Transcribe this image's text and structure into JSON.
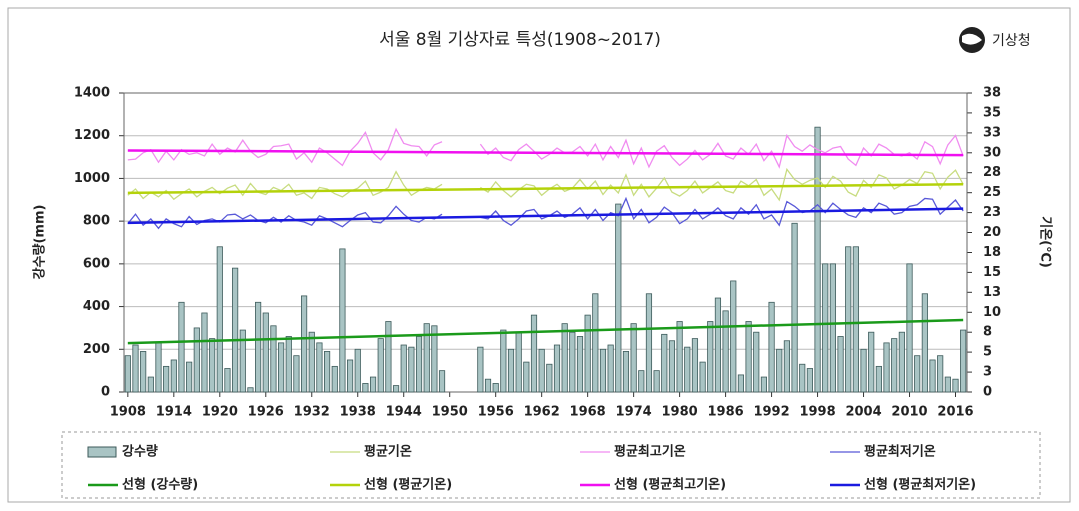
{
  "chart_data": {
    "type": "combo",
    "title": "서울 8월 기상자료 특성(1908~2017)",
    "brand": "기상청",
    "y_label": "강수량(mm)",
    "y2_label": "기온(℃)",
    "grid": true,
    "legend": "bottom",
    "xlim": [
      1907.5,
      2017.5
    ],
    "xticks": [
      1908,
      1914,
      1920,
      1926,
      1932,
      1938,
      1944,
      1950,
      1956,
      1962,
      1968,
      1974,
      1980,
      1986,
      1992,
      1998,
      2004,
      2010,
      2016
    ],
    "ylim": [
      0,
      1400
    ],
    "yticks": [
      0,
      200,
      400,
      600,
      800,
      1000,
      1200,
      1400
    ],
    "y2lim": [
      0,
      38
    ],
    "y2ticks": [
      0,
      {
        "value": 2.53,
        "label": "3"
      },
      {
        "value": 5.07,
        "label": "5"
      },
      {
        "value": 7.6,
        "label": "8"
      },
      {
        "value": 10.13,
        "label": "10"
      },
      {
        "value": 12.67,
        "label": "13"
      },
      {
        "value": 15.2,
        "label": "15"
      },
      {
        "value": 17.73,
        "label": "18"
      },
      {
        "value": 20.27,
        "label": "20"
      },
      {
        "value": 22.8,
        "label": "23"
      },
      {
        "value": 25.33,
        "label": "25"
      },
      {
        "value": 27.87,
        "label": "28"
      },
      {
        "value": 30.4,
        "label": "30"
      },
      {
        "value": 32.93,
        "label": "33"
      },
      {
        "value": 35.47,
        "label": "35"
      },
      38
    ],
    "x": [
      1908,
      1909,
      1910,
      1911,
      1912,
      1913,
      1914,
      1915,
      1916,
      1917,
      1918,
      1919,
      1920,
      1921,
      1922,
      1923,
      1924,
      1925,
      1926,
      1927,
      1928,
      1929,
      1930,
      1931,
      1932,
      1933,
      1934,
      1935,
      1936,
      1937,
      1938,
      1939,
      1940,
      1941,
      1942,
      1943,
      1944,
      1945,
      1946,
      1947,
      1948,
      1949,
      1950,
      1951,
      1952,
      1953,
      1954,
      1955,
      1956,
      1957,
      1958,
      1959,
      1960,
      1961,
      1962,
      1963,
      1964,
      1965,
      1966,
      1967,
      1968,
      1969,
      1970,
      1971,
      1972,
      1973,
      1974,
      1975,
      1976,
      1977,
      1978,
      1979,
      1980,
      1981,
      1982,
      1983,
      1984,
      1985,
      1986,
      1987,
      1988,
      1989,
      1990,
      1991,
      1992,
      1993,
      1994,
      1995,
      1996,
      1997,
      1998,
      1999,
      2000,
      2001,
      2002,
      2003,
      2004,
      2005,
      2006,
      2007,
      2008,
      2009,
      2010,
      2011,
      2012,
      2013,
      2014,
      2015,
      2016,
      2017
    ],
    "series": [
      {
        "name": "강수량",
        "type": "bar",
        "color": "#a9c4c4",
        "values": [
          170,
          220,
          190,
          70,
          230,
          120,
          150,
          420,
          140,
          300,
          370,
          250,
          680,
          110,
          580,
          290,
          20,
          420,
          370,
          310,
          230,
          260,
          170,
          450,
          280,
          230,
          190,
          120,
          670,
          150,
          200,
          40,
          70,
          250,
          330,
          30,
          220,
          210,
          260,
          320,
          310,
          100,
          null,
          null,
          null,
          null,
          210,
          60,
          40,
          290,
          200,
          280,
          140,
          360,
          200,
          130,
          220,
          320,
          280,
          260,
          360,
          460,
          200,
          220,
          880,
          190,
          320,
          100,
          460,
          100,
          270,
          240,
          330,
          210,
          250,
          140,
          330,
          440,
          380,
          520,
          80,
          330,
          280,
          70,
          420,
          200,
          240,
          790,
          130,
          110,
          1240,
          600,
          600,
          260,
          680,
          680,
          200,
          280,
          120,
          230,
          250,
          280,
          600,
          170,
          460,
          150,
          170,
          70,
          60,
          290
        ]
      },
      {
        "name": "평균기온",
        "type": "line",
        "axis": "y2",
        "color": "#c8dc80",
        "values": [
          25.0,
          25.8,
          24.6,
          25.4,
          24.8,
          25.6,
          24.5,
          25.2,
          25.8,
          24.8,
          25.5,
          26.0,
          25.2,
          25.9,
          26.3,
          25.0,
          26.5,
          25.4,
          25.1,
          26.0,
          25.6,
          26.4,
          25.0,
          25.3,
          24.6,
          26.0,
          25.8,
          25.2,
          24.8,
          25.5,
          25.9,
          26.8,
          25.0,
          25.4,
          26.0,
          28.0,
          26.3,
          25.0,
          25.6,
          26.0,
          25.8,
          26.4,
          null,
          null,
          null,
          null,
          26.0,
          25.4,
          26.7,
          25.6,
          24.8,
          25.7,
          26.4,
          26.2,
          25.0,
          25.8,
          26.4,
          25.5,
          25.9,
          27.0,
          25.8,
          26.8,
          25.1,
          26.3,
          25.3,
          27.6,
          25.0,
          26.4,
          24.8,
          25.9,
          27.2,
          25.4,
          24.9,
          25.6,
          26.8,
          25.3,
          26.0,
          26.7,
          25.6,
          25.3,
          26.8,
          26.2,
          27.0,
          25.0,
          25.8,
          24.4,
          28.3,
          27.0,
          26.4,
          26.9,
          27.2,
          26.0,
          27.4,
          26.8,
          25.4,
          24.9,
          26.9,
          26.0,
          27.6,
          27.2,
          25.8,
          26.3,
          27.0,
          26.5,
          28.0,
          27.8,
          25.8,
          27.3,
          28.2,
          26.4
        ]
      },
      {
        "name": "평균최고기온",
        "type": "line",
        "axis": "y2",
        "color": "#f08cf0",
        "values": [
          29.5,
          29.6,
          30.4,
          30.8,
          29.2,
          30.6,
          29.5,
          30.8,
          30.2,
          30.4,
          30.0,
          31.5,
          30.2,
          31.0,
          30.5,
          32.0,
          30.6,
          29.8,
          30.2,
          31.2,
          31.3,
          31.5,
          29.6,
          30.4,
          29.2,
          31.0,
          30.4,
          29.6,
          28.8,
          30.6,
          31.6,
          33.0,
          30.4,
          29.5,
          30.8,
          33.4,
          31.6,
          31.3,
          31.2,
          30.0,
          31.4,
          31.8,
          null,
          null,
          null,
          null,
          31.5,
          30.2,
          31.0,
          29.8,
          29.4,
          30.8,
          31.5,
          30.6,
          29.6,
          30.2,
          31.0,
          30.4,
          30.5,
          31.2,
          30.0,
          31.5,
          29.5,
          31.2,
          29.8,
          32.0,
          29.0,
          31.0,
          28.6,
          30.6,
          31.3,
          29.8,
          28.8,
          29.6,
          30.7,
          29.5,
          30.2,
          31.6,
          30.0,
          29.6,
          31.0,
          30.2,
          31.5,
          29.4,
          30.6,
          28.6,
          32.6,
          31.2,
          30.6,
          31.4,
          30.8,
          30.4,
          31.0,
          31.2,
          29.6,
          28.8,
          31.0,
          30.0,
          31.5,
          31.0,
          30.2,
          30.0,
          30.4,
          29.6,
          31.8,
          31.2,
          29.0,
          31.4,
          32.6,
          30.0
        ]
      },
      {
        "name": "평균최저기온",
        "type": "line",
        "axis": "y2",
        "color": "#5858d8",
        "values": [
          21.4,
          22.6,
          21.2,
          22.0,
          20.8,
          22.0,
          21.4,
          21.0,
          22.3,
          21.3,
          21.8,
          22.0,
          21.6,
          22.5,
          22.6,
          22.0,
          22.5,
          21.8,
          21.5,
          22.2,
          21.6,
          22.4,
          21.8,
          21.6,
          21.2,
          22.4,
          22.0,
          21.5,
          21.0,
          21.8,
          22.5,
          22.8,
          21.6,
          21.5,
          22.4,
          23.6,
          22.6,
          21.8,
          21.6,
          22.2,
          22.0,
          22.6,
          null,
          null,
          null,
          null,
          22.2,
          22.0,
          23.0,
          21.8,
          21.2,
          22.0,
          23.0,
          23.2,
          22.0,
          22.4,
          23.0,
          22.2,
          22.6,
          23.4,
          22.0,
          23.2,
          21.8,
          22.8,
          22.4,
          24.6,
          22.0,
          23.2,
          21.5,
          22.2,
          23.5,
          22.8,
          21.4,
          22.0,
          23.2,
          22.0,
          22.6,
          23.4,
          22.4,
          22.0,
          23.4,
          22.6,
          23.8,
          22.0,
          22.5,
          21.2,
          24.2,
          23.6,
          22.8,
          23.0,
          23.8,
          22.8,
          24.0,
          23.2,
          22.5,
          22.2,
          23.4,
          22.8,
          24.0,
          23.6,
          22.6,
          22.8,
          23.6,
          23.8,
          24.6,
          24.5,
          22.6,
          23.5,
          24.4,
          23.0
        ]
      },
      {
        "name": "선형 (강수량)",
        "type": "trend",
        "color": "#1a9a1a",
        "x": [
          1908,
          2017
        ],
        "values": [
          229,
          337
        ]
      },
      {
        "name": "선형 (평균기온)",
        "type": "trend",
        "axis": "y2",
        "color": "#b4d20a",
        "x": [
          1908,
          2017
        ],
        "values": [
          25.3,
          26.4
        ]
      },
      {
        "name": "선형 (평균최고기온)",
        "type": "trend",
        "axis": "y2",
        "color": "#f010f0",
        "x": [
          1908,
          2017
        ],
        "values": [
          30.7,
          30.1
        ]
      },
      {
        "name": "선형 (평균최저기온)",
        "type": "trend",
        "axis": "y2",
        "color": "#1a1ae0",
        "x": [
          1908,
          2017
        ],
        "values": [
          21.5,
          23.3
        ]
      }
    ]
  }
}
